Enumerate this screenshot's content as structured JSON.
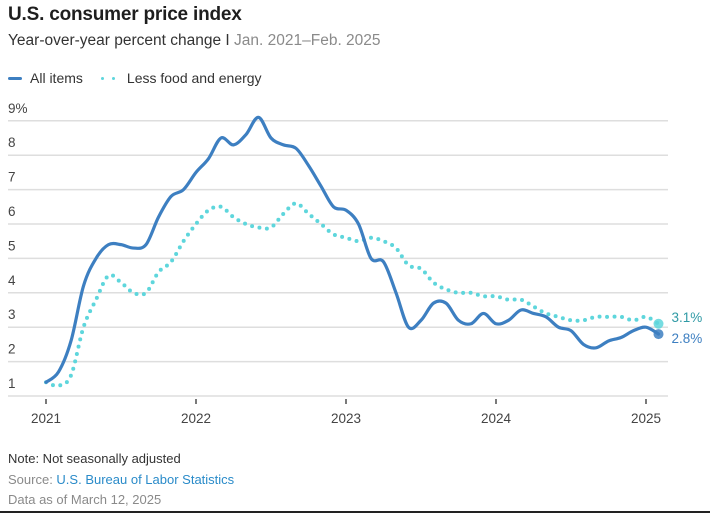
{
  "header": {
    "title": "U.S. consumer price index",
    "subtitle_main": "Year-over-year percent change I ",
    "subtitle_range": "Jan. 2021–Feb. 2025"
  },
  "legend": {
    "all_items": "All items",
    "core": "Less food and energy"
  },
  "colors": {
    "all_items": "#3d7fc1",
    "core": "#5ed6dc",
    "grid": "#dedede",
    "tick_text": "#444444"
  },
  "chart_data": {
    "type": "line",
    "title": "U.S. consumer price index",
    "subtitle": "Year-over-year percent change | Jan. 2021–Feb. 2025",
    "xlabel": "",
    "ylabel": "",
    "x_start": "2021-01",
    "x_end": "2025-02",
    "x_ticks": [
      "2021",
      "2022",
      "2023",
      "2024",
      "2025"
    ],
    "y_ticks": [
      "1",
      "2",
      "3",
      "4",
      "5",
      "6",
      "7",
      "8",
      "9%"
    ],
    "ylim": [
      1,
      9
    ],
    "grid": true,
    "legend_position": "top-left",
    "series": [
      {
        "name": "All items",
        "style": "solid",
        "end_label": "2.8%",
        "values": [
          1.4,
          1.7,
          2.6,
          4.2,
          5.0,
          5.4,
          5.4,
          5.3,
          5.4,
          6.2,
          6.8,
          7.0,
          7.5,
          7.9,
          8.5,
          8.3,
          8.6,
          9.1,
          8.5,
          8.3,
          8.2,
          7.7,
          7.1,
          6.5,
          6.4,
          6.0,
          5.0,
          4.9,
          4.0,
          3.0,
          3.2,
          3.7,
          3.7,
          3.2,
          3.1,
          3.4,
          3.1,
          3.2,
          3.5,
          3.4,
          3.3,
          3.0,
          2.9,
          2.5,
          2.4,
          2.6,
          2.7,
          2.9,
          3.0,
          2.8
        ]
      },
      {
        "name": "Less food and energy",
        "style": "dotted",
        "end_label": "3.1%",
        "values": [
          1.4,
          1.3,
          1.6,
          3.0,
          3.8,
          4.5,
          4.3,
          4.0,
          4.0,
          4.6,
          4.9,
          5.5,
          6.0,
          6.4,
          6.5,
          6.2,
          6.0,
          5.9,
          5.9,
          6.3,
          6.6,
          6.3,
          6.0,
          5.7,
          5.6,
          5.5,
          5.6,
          5.5,
          5.3,
          4.8,
          4.7,
          4.3,
          4.1,
          4.0,
          4.0,
          3.9,
          3.9,
          3.8,
          3.8,
          3.6,
          3.4,
          3.3,
          3.2,
          3.2,
          3.3,
          3.3,
          3.3,
          3.2,
          3.3,
          3.1
        ]
      }
    ]
  },
  "footer": {
    "note": "Note: Not seasonally adjusted",
    "source_label": "Source: ",
    "source_link": "U.S. Bureau of Labor Statistics",
    "as_of": "Data as of March 12, 2025"
  }
}
